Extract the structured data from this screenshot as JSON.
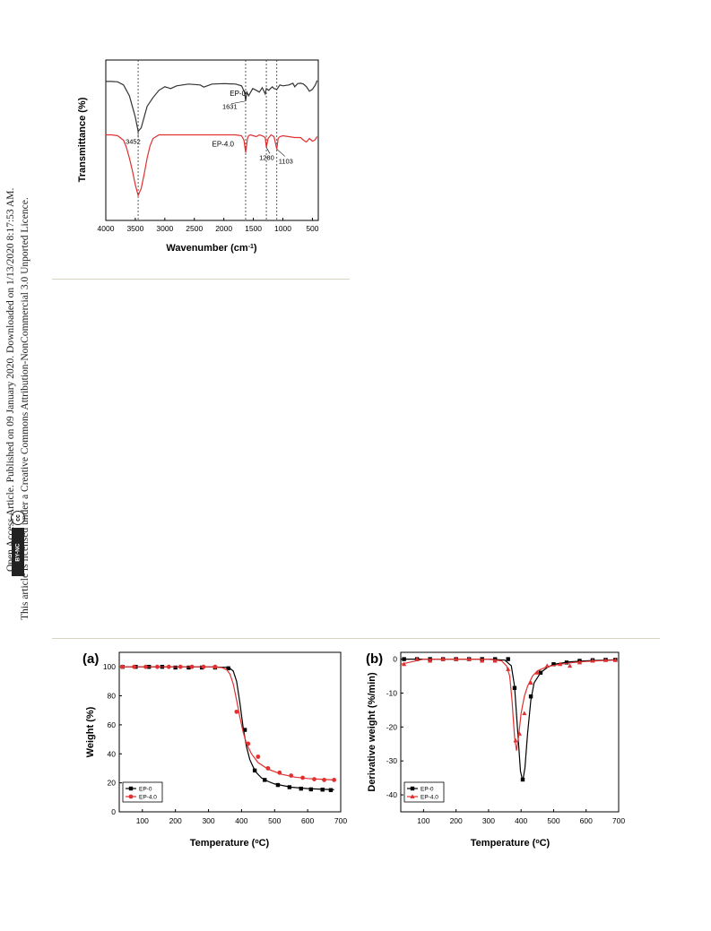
{
  "sidebar": {
    "line1": "Open Access Article. Published on 09 January 2020. Downloaded on 1/13/2020 8:17:53 AM.",
    "line2": "This article is licensed under a Creative Commons Attribution-NonCommercial 3.0 Unported Licence.",
    "badge_cc": "cc",
    "badge_text": "BY-NC"
  },
  "chart_data": [
    {
      "type": "line",
      "xlabel": "Wavenumber (cm-1)",
      "ylabel": "Transmittance (%)",
      "xlim": [
        4000,
        400
      ],
      "x_ticks": [
        4000,
        3500,
        3000,
        2500,
        2000,
        1500,
        1000,
        500
      ],
      "y_ticks_shown": false,
      "series": [
        {
          "name": "EP-0",
          "color": "#333333",
          "x": [
            4000,
            3900,
            3800,
            3700,
            3600,
            3550,
            3500,
            3452,
            3400,
            3350,
            3300,
            3200,
            3100,
            3000,
            2950,
            2900,
            2800,
            2600,
            2400,
            2340,
            2200,
            2000,
            1800,
            1700,
            1650,
            1631,
            1610,
            1580,
            1510,
            1450,
            1400,
            1350,
            1300,
            1280,
            1240,
            1180,
            1150,
            1103,
            1050,
            1000,
            900,
            830,
            800,
            750,
            700,
            650,
            600,
            550,
            500,
            450,
            420
          ],
          "y": [
            88,
            88,
            87.8,
            86,
            80,
            74,
            68,
            60,
            62,
            68,
            74,
            79,
            83,
            85,
            84.5,
            84,
            85.5,
            86.5,
            86,
            84.8,
            86.5,
            86.8,
            86.5,
            85.5,
            82,
            77,
            82,
            80,
            84,
            83,
            82,
            84.5,
            81,
            84,
            83,
            85,
            84,
            83.5,
            86,
            85.5,
            86,
            87,
            85,
            86.8,
            87,
            86.5,
            85,
            82.5,
            83.5,
            86,
            88.5
          ]
        },
        {
          "name": "EP-4.0",
          "color": "#e03030",
          "x": [
            4000,
            3900,
            3800,
            3700,
            3650,
            3600,
            3550,
            3500,
            3452,
            3400,
            3350,
            3300,
            3250,
            3200,
            3100,
            3000,
            2800,
            2400,
            2000,
            1800,
            1700,
            1660,
            1631,
            1600,
            1580,
            1550,
            1500,
            1450,
            1400,
            1350,
            1300,
            1280,
            1250,
            1200,
            1150,
            1103,
            1080,
            1050,
            1000,
            900,
            800,
            700,
            650,
            600,
            550,
            500,
            460,
            420
          ],
          "y": [
            58,
            58,
            57.5,
            55,
            51,
            45,
            38,
            30,
            24,
            28,
            36,
            45,
            52,
            56,
            58,
            58,
            58,
            58,
            58,
            58,
            57.5,
            55,
            48,
            56,
            57.5,
            58,
            57.5,
            57,
            58,
            57.5,
            56.5,
            51,
            56,
            58,
            57,
            50,
            56,
            57,
            57.5,
            57,
            56.5,
            56.5,
            55,
            54,
            56,
            54.5,
            55,
            57
          ]
        }
      ],
      "vlines": [
        3452,
        1631,
        1280,
        1103
      ],
      "annotations": [
        {
          "text": "3452",
          "x": 3452,
          "y": 60
        },
        {
          "text": "1631",
          "x": 1631,
          "y": 77
        },
        {
          "text": "1280",
          "x": 1280,
          "y": 51
        },
        {
          "text": "1103",
          "x": 1103,
          "y": 50
        }
      ],
      "series_labels": [
        "EP-0",
        "EP-4.0"
      ]
    },
    {
      "type": "line",
      "panel": "(a)",
      "xlabel": "Temperature (°C)",
      "ylabel": "Weight (%)",
      "xlim": [
        30,
        700
      ],
      "ylim": [
        0,
        110
      ],
      "x_ticks": [
        100,
        200,
        300,
        400,
        500,
        600,
        700
      ],
      "y_ticks": [
        0,
        20,
        40,
        60,
        80,
        100
      ],
      "legend": "bottom-left",
      "series": [
        {
          "name": "EP-0",
          "color": "#000000",
          "marker": "square",
          "x": [
            30,
            100,
            200,
            300,
            350,
            365,
            375,
            385,
            395,
            405,
            415,
            425,
            435,
            445,
            460,
            480,
            500,
            550,
            600,
            650,
            680
          ],
          "y": [
            100,
            100,
            100,
            100,
            99.7,
            99,
            97,
            90,
            75,
            58,
            45,
            36,
            31,
            27,
            23.5,
            21,
            19.2,
            17,
            16,
            15.5,
            15.2
          ],
          "markers_x": [
            40,
            80,
            120,
            160,
            200,
            240,
            280,
            320,
            360,
            410,
            440,
            470,
            510,
            545,
            580,
            610,
            645,
            670
          ],
          "markers_y": [
            100,
            100,
            100,
            100,
            99.5,
            99.5,
            99.5,
            99.5,
            99,
            56.5,
            28.5,
            22,
            18.5,
            17,
            16,
            15.5,
            15.3,
            15
          ]
        },
        {
          "name": "EP-4.0",
          "color": "#e03030",
          "marker": "circle",
          "x": [
            30,
            100,
            200,
            300,
            340,
            355,
            365,
            375,
            385,
            395,
            405,
            415,
            430,
            450,
            480,
            520,
            560,
            600,
            650,
            680
          ],
          "y": [
            100,
            100,
            100,
            100,
            99.5,
            98,
            95,
            88,
            77,
            65,
            55,
            47,
            40,
            34,
            29.5,
            26,
            24,
            23,
            22.3,
            22
          ],
          "markers_x": [
            40,
            75,
            110,
            145,
            180,
            215,
            250,
            285,
            320,
            385,
            420,
            450,
            480,
            515,
            550,
            585,
            620,
            650,
            680
          ],
          "markers_y": [
            100,
            100,
            100,
            100,
            100,
            100,
            100,
            100,
            100,
            69,
            47,
            38,
            30,
            27,
            25,
            23.5,
            22.5,
            22,
            22
          ]
        }
      ]
    },
    {
      "type": "line",
      "panel": "(b)",
      "xlabel": "Temperature (°C)",
      "ylabel": "Derivative weight (%/min)",
      "xlim": [
        30,
        700
      ],
      "ylim": [
        -45,
        2
      ],
      "x_ticks": [
        100,
        200,
        300,
        400,
        500,
        600,
        700
      ],
      "y_ticks": [
        0,
        -10,
        -20,
        -30,
        -40
      ],
      "legend": "bottom-left",
      "series": [
        {
          "name": "EP-0",
          "color": "#000000",
          "marker": "square",
          "x": [
            30,
            100,
            200,
            300,
            350,
            370,
            380,
            390,
            398,
            405,
            412,
            420,
            430,
            440,
            460,
            480,
            500,
            550,
            600,
            650,
            690
          ],
          "y": [
            0,
            0,
            0,
            0,
            -0.3,
            -2,
            -8,
            -22,
            -33,
            -36,
            -32,
            -22,
            -12,
            -7,
            -4,
            -2.5,
            -1.5,
            -0.8,
            -0.5,
            -0.3,
            -0.2
          ],
          "markers_x": [
            40,
            80,
            120,
            160,
            200,
            240,
            280,
            320,
            360,
            380,
            405,
            430,
            460,
            500,
            540,
            580,
            620,
            660,
            690
          ],
          "markers_y": [
            0,
            0,
            0,
            0,
            0,
            0,
            0,
            0,
            0,
            -8.5,
            -35.5,
            -11,
            -4,
            -1.5,
            -1,
            -0.5,
            -0.3,
            -0.2,
            -0.2
          ]
        },
        {
          "name": "EP-4.0",
          "color": "#e03030",
          "marker": "triangle",
          "x": [
            30,
            100,
            200,
            300,
            340,
            355,
            365,
            372,
            380,
            386,
            392,
            400,
            410,
            420,
            435,
            450,
            480,
            520,
            560,
            600,
            650,
            690
          ],
          "y": [
            -1.5,
            0,
            0,
            0,
            -0.5,
            -2,
            -5,
            -12,
            -23,
            -27,
            -23,
            -16,
            -11,
            -8,
            -5,
            -3.5,
            -2.2,
            -1.5,
            -1,
            -0.7,
            -0.4,
            -0.3
          ],
          "markers_x": [
            40,
            80,
            120,
            160,
            200,
            240,
            280,
            320,
            360,
            383,
            395,
            410,
            430,
            450,
            480,
            520,
            550,
            580,
            620,
            660,
            690
          ],
          "markers_y": [
            -1.5,
            0,
            -0.5,
            0,
            0,
            0,
            -0.5,
            -0.5,
            -3,
            -24,
            -22,
            -16,
            -7,
            -4,
            -2,
            -1.5,
            -2,
            -1,
            -0.5,
            -0.3,
            -0.3
          ]
        }
      ]
    }
  ]
}
